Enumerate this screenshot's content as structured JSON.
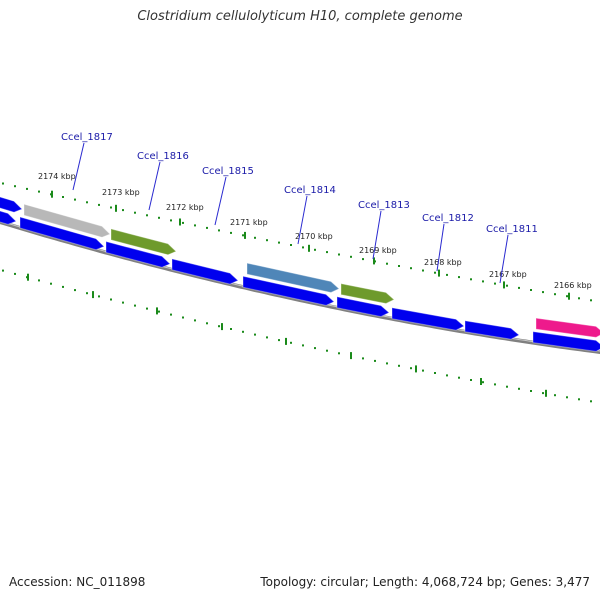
{
  "title": "Clostridium cellulolyticum H10, complete genome",
  "accession_text": "Accession: NC_011898",
  "summary_text": "Topology: circular; Length: 4,068,724 bp; Genes: 3,477",
  "colors": {
    "backbone": "#808080",
    "tick": "#1a8a1a",
    "cds": "#0000ee",
    "gray": "#b8b8b8",
    "olive": "#6e9a2c",
    "steel": "#4f86b8",
    "pink": "#ee1a8c",
    "gene_label": "#1a1aa8"
  },
  "kbp_labels": [
    "2174 kbp",
    "2173 kbp",
    "2172 kbp",
    "2171 kbp",
    "2170 kbp",
    "2169 kbp",
    "2168 kbp",
    "2167 kbp",
    "2166 kbp"
  ],
  "gene_labels": [
    "Ccel_1817",
    "Ccel_1816",
    "Ccel_1815",
    "Ccel_1814",
    "Ccel_1813",
    "Ccel_1812",
    "Ccel_1811"
  ]
}
